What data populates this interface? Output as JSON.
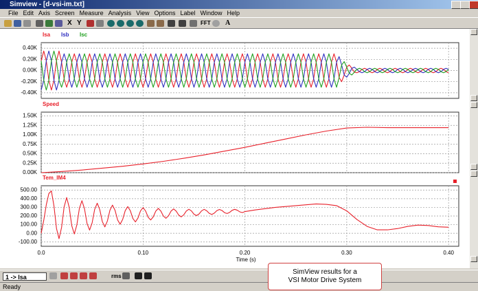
{
  "window": {
    "title": "Simview - [d-vsi-im.txt]"
  },
  "menu": [
    "File",
    "Edit",
    "Axis",
    "Screen",
    "Measure",
    "Analysis",
    "View",
    "Options",
    "Label",
    "Window",
    "Help"
  ],
  "toolbar": {
    "labels": [
      "X",
      "Y",
      "FFT",
      "A"
    ]
  },
  "chart_data": [
    {
      "type": "line",
      "xlim": [
        0,
        0.41
      ],
      "ylim": [
        -0.5,
        0.5
      ],
      "yticks": [
        {
          "value": 0.4,
          "label": "0.40K"
        },
        {
          "value": 0.2,
          "label": "0.20K"
        },
        {
          "value": 0,
          "label": "0.00K"
        },
        {
          "value": -0.2,
          "label": "-0.20K"
        },
        {
          "value": -0.4,
          "label": "-0.40K"
        }
      ],
      "xticks": [
        0,
        0.1,
        0.2,
        0.3,
        0.4
      ],
      "grid": true,
      "x": [
        0,
        0.0025,
        0.005,
        0.0075,
        0.01,
        0.0125,
        0.015,
        0.0175,
        0.02,
        0.0225,
        0.025,
        0.0275,
        0.03,
        0.0325,
        0.035,
        0.0375,
        0.04,
        0.0425,
        0.045,
        0.0475,
        0.05,
        0.0525,
        0.055,
        0.0575,
        0.06,
        0.0625,
        0.065,
        0.0675,
        0.07,
        0.0725,
        0.075,
        0.0775,
        0.08,
        0.0825,
        0.085,
        0.0875,
        0.09,
        0.0925,
        0.095,
        0.0975,
        0.1,
        0.1025,
        0.105,
        0.1075,
        0.11,
        0.1125,
        0.115,
        0.1175,
        0.12,
        0.1225,
        0.125,
        0.1275,
        0.13,
        0.1325,
        0.135,
        0.1375,
        0.14,
        0.1425,
        0.145,
        0.1475,
        0.15,
        0.1525,
        0.155,
        0.1575,
        0.16,
        0.1625,
        0.165,
        0.1675,
        0.17,
        0.1725,
        0.175,
        0.1775,
        0.18,
        0.1825,
        0.185,
        0.1875,
        0.19,
        0.1925,
        0.195,
        0.1975,
        0.2,
        0.2025,
        0.205,
        0.2075,
        0.21,
        0.2125,
        0.215,
        0.2175,
        0.22,
        0.2225,
        0.225,
        0.2275,
        0.23,
        0.2325,
        0.235,
        0.2375,
        0.24,
        0.2425,
        0.245,
        0.2475,
        0.25,
        0.2525,
        0.255,
        0.2575,
        0.26,
        0.2625,
        0.265,
        0.2675,
        0.27,
        0.2725,
        0.275,
        0.2775,
        0.28,
        0.2825,
        0.285,
        0.2875,
        0.29,
        0.2925,
        0.295,
        0.2975,
        0.3,
        0.3025,
        0.305,
        0.3075,
        0.31,
        0.3125,
        0.315,
        0.3175,
        0.32,
        0.3225,
        0.325,
        0.3275,
        0.33,
        0.3325,
        0.335,
        0.3375,
        0.34,
        0.3425,
        0.345,
        0.3475,
        0.35,
        0.3525,
        0.355,
        0.3575,
        0.36,
        0.3625,
        0.365,
        0.3675,
        0.37,
        0.3725,
        0.375,
        0.3775,
        0.38,
        0.3825,
        0.385,
        0.3875,
        0.39,
        0.3925,
        0.395,
        0.3975,
        0.4
      ],
      "series": [
        {
          "name": "Isa",
          "color": "#e8202a",
          "values": [
            0.175,
            0.35,
            0.175,
            -0.175,
            -0.35,
            -0.175,
            0.175,
            0.35,
            0.15,
            -0.15,
            -0.3,
            -0.15,
            0.15,
            0.3,
            0.15,
            -0.15,
            -0.3,
            -0.15,
            0.15,
            0.3,
            0.15,
            -0.15,
            -0.3,
            -0.15,
            0.15,
            0.3,
            0.15,
            -0.15,
            -0.3,
            -0.15,
            0.15,
            0.3,
            0.15,
            -0.15,
            -0.3,
            -0.15,
            0.15,
            0.3,
            0.15,
            -0.15,
            -0.3,
            -0.15,
            0.15,
            0.3,
            0.15,
            -0.15,
            -0.3,
            -0.15,
            0.15,
            0.3,
            0.15,
            -0.15,
            -0.3,
            -0.15,
            0.15,
            0.3,
            0.15,
            -0.15,
            -0.3,
            -0.15,
            0.15,
            0.3,
            0.15,
            -0.15,
            -0.3,
            -0.15,
            0.15,
            0.3,
            0.15,
            -0.15,
            -0.3,
            -0.15,
            0.15,
            0.3,
            0.15,
            -0.15,
            -0.3,
            -0.15,
            0.15,
            0.3,
            0.15,
            -0.15,
            -0.3,
            -0.15,
            0.15,
            0.3,
            0.15,
            -0.15,
            -0.3,
            -0.15,
            0.15,
            0.3,
            0.15,
            -0.15,
            -0.3,
            -0.15,
            0.15,
            0.3,
            0.15,
            -0.15,
            -0.3,
            -0.15,
            0.15,
            0.3,
            0.15,
            -0.15,
            -0.3,
            -0.15,
            0.15,
            0.3,
            0.15,
            -0.15,
            -0.3,
            -0.15,
            0.15,
            0.3,
            0.15,
            -0.125,
            -0.2,
            -0.08,
            0.06,
            0.1,
            0.04,
            -0.03,
            -0.04,
            -0.02,
            0.02,
            0.04,
            0.02,
            -0.02,
            -0.04,
            -0.02,
            0.02,
            0.04,
            0.02,
            -0.02,
            -0.04,
            -0.02,
            0.02,
            0.04,
            0.02,
            -0.02,
            -0.04,
            -0.02,
            0.02,
            0.04,
            0.02,
            -0.02,
            -0.04,
            -0.02,
            0.02,
            0.04,
            0.02,
            -0.02,
            -0.04,
            -0.02,
            0.02,
            0.04,
            0.02,
            -0.02,
            -0.04
          ]
        },
        {
          "name": "Isb",
          "color": "#3030c0",
          "values": [
            -0.35,
            -0.175,
            0.175,
            0.35,
            0.175,
            -0.175,
            -0.35,
            -0.175,
            0.15,
            0.3,
            0.15,
            -0.15,
            -0.3,
            -0.15,
            0.15,
            0.3,
            0.15,
            -0.15,
            -0.3,
            -0.15,
            0.15,
            0.3,
            0.15,
            -0.15,
            -0.3,
            -0.15,
            0.15,
            0.3,
            0.15,
            -0.15,
            -0.3,
            -0.15,
            0.15,
            0.3,
            0.15,
            -0.15,
            -0.3,
            -0.15,
            0.15,
            0.3,
            0.15,
            -0.15,
            -0.3,
            -0.15,
            0.15,
            0.3,
            0.15,
            -0.15,
            -0.3,
            -0.15,
            0.15,
            0.3,
            0.15,
            -0.15,
            -0.3,
            -0.15,
            0.15,
            0.3,
            0.15,
            -0.15,
            -0.3,
            -0.15,
            0.15,
            0.3,
            0.15,
            -0.15,
            -0.3,
            -0.15,
            0.15,
            0.3,
            0.15,
            -0.15,
            -0.3,
            -0.15,
            0.15,
            0.3,
            0.15,
            -0.15,
            -0.3,
            -0.15,
            0.15,
            0.3,
            0.15,
            -0.15,
            -0.3,
            -0.15,
            0.15,
            0.3,
            0.15,
            -0.15,
            -0.3,
            -0.15,
            0.15,
            0.3,
            0.15,
            -0.15,
            -0.3,
            -0.15,
            0.15,
            0.3,
            0.15,
            -0.15,
            -0.3,
            -0.15,
            0.15,
            0.3,
            0.15,
            -0.15,
            -0.3,
            -0.15,
            0.15,
            0.3,
            0.15,
            -0.15,
            -0.3,
            -0.15,
            0.15,
            0.25,
            0.1,
            -0.08,
            -0.12,
            -0.05,
            0.04,
            0.06,
            0.02,
            -0.02,
            -0.04,
            -0.02,
            0.02,
            0.04,
            0.02,
            -0.02,
            -0.04,
            -0.02,
            0.02,
            0.04,
            0.02,
            -0.02,
            -0.04,
            -0.02,
            0.02,
            0.04,
            0.02,
            -0.02,
            -0.04,
            -0.02,
            0.02,
            0.04,
            0.02,
            -0.02,
            -0.04,
            -0.02,
            0.02,
            0.04,
            0.02,
            -0.02,
            -0.04,
            -0.02,
            0.02,
            0.04,
            0.02
          ]
        },
        {
          "name": "Isc",
          "color": "#20a020",
          "values": [
            0.175,
            -0.175,
            -0.35,
            -0.175,
            0.175,
            0.35,
            0.175,
            -0.175,
            -0.3,
            -0.15,
            0.15,
            0.3,
            0.15,
            -0.15,
            -0.3,
            -0.15,
            0.15,
            0.3,
            0.15,
            -0.15,
            -0.3,
            -0.15,
            0.15,
            0.3,
            0.15,
            -0.15,
            -0.3,
            -0.15,
            0.15,
            0.3,
            0.15,
            -0.15,
            -0.3,
            -0.15,
            0.15,
            0.3,
            0.15,
            -0.15,
            -0.3,
            -0.15,
            0.15,
            0.3,
            0.15,
            -0.15,
            -0.3,
            -0.15,
            0.15,
            0.3,
            0.15,
            -0.15,
            -0.3,
            -0.15,
            0.15,
            0.3,
            0.15,
            -0.15,
            -0.3,
            -0.15,
            0.15,
            0.3,
            0.15,
            -0.15,
            -0.3,
            -0.15,
            0.15,
            0.3,
            0.15,
            -0.15,
            -0.3,
            -0.15,
            0.15,
            0.3,
            0.15,
            -0.15,
            -0.3,
            -0.15,
            0.15,
            0.3,
            0.15,
            -0.15,
            -0.3,
            -0.15,
            0.15,
            0.3,
            0.15,
            -0.15,
            -0.3,
            -0.15,
            0.15,
            0.3,
            0.15,
            -0.15,
            -0.3,
            -0.15,
            0.15,
            0.3,
            0.15,
            -0.15,
            -0.3,
            -0.15,
            0.15,
            0.3,
            0.15,
            -0.15,
            -0.3,
            -0.15,
            0.15,
            0.3,
            0.15,
            -0.15,
            -0.3,
            -0.15,
            0.15,
            0.3,
            0.15,
            -0.15,
            -0.3,
            -0.125,
            0.1,
            0.16,
            0.06,
            -0.05,
            -0.08,
            -0.03,
            0.02,
            0.04,
            0.02,
            -0.02,
            -0.04,
            -0.02,
            0.02,
            0.04,
            0.02,
            -0.02,
            -0.04,
            -0.02,
            0.02,
            0.04,
            0.02,
            -0.02,
            -0.04,
            -0.02,
            0.02,
            0.04,
            0.02,
            -0.02,
            -0.04,
            -0.02,
            0.02,
            0.04,
            0.02,
            -0.02,
            -0.04,
            -0.02,
            0.02,
            0.04,
            0.02,
            -0.02,
            -0.04,
            -0.02,
            0.02
          ]
        }
      ]
    },
    {
      "type": "line",
      "xlim": [
        0,
        0.41
      ],
      "ylim": [
        0,
        1.6
      ],
      "yticks": [
        {
          "value": 1.5,
          "label": "1.50K"
        },
        {
          "value": 1.25,
          "label": "1.25K"
        },
        {
          "value": 1,
          "label": "1.00K"
        },
        {
          "value": 0.75,
          "label": "0.75K"
        },
        {
          "value": 0.5,
          "label": "0.50K"
        },
        {
          "value": 0.25,
          "label": "0.25K"
        },
        {
          "value": 0,
          "label": "0.00K"
        }
      ],
      "xticks": [
        0,
        0.1,
        0.2,
        0.3,
        0.4
      ],
      "grid": true,
      "x": [
        0,
        0.02,
        0.04,
        0.06,
        0.08,
        0.1,
        0.12,
        0.14,
        0.16,
        0.18,
        0.2,
        0.22,
        0.24,
        0.26,
        0.28,
        0.3,
        0.32,
        0.34,
        0.36,
        0.38,
        0.4
      ],
      "series": [
        {
          "name": "Speed",
          "color": "#e8202a",
          "values": [
            0,
            0.03,
            0.07,
            0.12,
            0.17,
            0.23,
            0.3,
            0.38,
            0.47,
            0.57,
            0.67,
            0.78,
            0.89,
            1.0,
            1.1,
            1.18,
            1.2,
            1.19,
            1.19,
            1.19,
            1.19
          ]
        }
      ]
    },
    {
      "type": "line",
      "xlim": [
        0,
        0.41
      ],
      "ylim": [
        -150,
        550
      ],
      "yticks": [
        {
          "value": 500,
          "label": "500.00"
        },
        {
          "value": 400,
          "label": "400.00"
        },
        {
          "value": 300,
          "label": "300.00"
        },
        {
          "value": 200,
          "label": "200.00"
        },
        {
          "value": 100,
          "label": "100.00"
        },
        {
          "value": 0,
          "label": "0.00"
        },
        {
          "value": -100,
          "label": "-100.00"
        }
      ],
      "xticks": [
        {
          "value": 0,
          "label": "0.0"
        },
        {
          "value": 0.1,
          "label": "0.10"
        },
        {
          "value": 0.2,
          "label": "0.20"
        },
        {
          "value": 0.3,
          "label": "0.30"
        },
        {
          "value": 0.4,
          "label": "0.40"
        }
      ],
      "grid": true,
      "x_label": "Time (s)",
      "x": [
        0,
        0.0025,
        0.005,
        0.0075,
        0.01,
        0.0125,
        0.015,
        0.0175,
        0.02,
        0.0225,
        0.025,
        0.0275,
        0.03,
        0.0325,
        0.035,
        0.0375,
        0.04,
        0.0425,
        0.045,
        0.0475,
        0.05,
        0.0525,
        0.055,
        0.0575,
        0.06,
        0.0625,
        0.065,
        0.0675,
        0.07,
        0.0725,
        0.075,
        0.0775,
        0.08,
        0.0825,
        0.085,
        0.0875,
        0.09,
        0.0925,
        0.095,
        0.0975,
        0.1,
        0.1025,
        0.105,
        0.1075,
        0.11,
        0.1125,
        0.115,
        0.1175,
        0.12,
        0.1225,
        0.125,
        0.1275,
        0.13,
        0.1325,
        0.135,
        0.1375,
        0.14,
        0.1425,
        0.145,
        0.1475,
        0.15,
        0.1525,
        0.155,
        0.1575,
        0.16,
        0.1625,
        0.165,
        0.1675,
        0.17,
        0.1725,
        0.175,
        0.1775,
        0.18,
        0.1825,
        0.185,
        0.1875,
        0.19,
        0.1925,
        0.195,
        0.1975,
        0.2,
        0.21,
        0.22,
        0.23,
        0.24,
        0.25,
        0.26,
        0.27,
        0.28,
        0.29,
        0.3,
        0.31,
        0.32,
        0.33,
        0.34,
        0.35,
        0.36,
        0.37,
        0.38,
        0.39,
        0.4
      ],
      "series": [
        {
          "name": "Tem_IM4",
          "color": "#e8202a",
          "values": [
            0,
            150,
            330,
            460,
            490,
            319,
            57,
            -62,
            68,
            305,
            414,
            299,
            88,
            -8,
            97,
            289,
            377,
            284,
            114,
            37,
            121,
            277,
            348,
            274,
            136,
            74,
            143,
            268,
            326,
            266,
            155,
            105,
            161,
            262,
            309,
            261,
            172,
            132,
            177,
            259,
            297,
            258,
            186,
            154,
            190,
            257,
            288,
            257,
            199,
            174,
            203,
            257,
            282,
            257,
            211,
            190,
            214,
            258,
            278,
            259,
            221,
            205,
            224,
            260,
            277,
            261,
            231,
            218,
            234,
            263,
            276,
            264,
            239,
            229,
            242,
            266,
            277,
            267,
            248,
            240,
            251,
            270,
            285,
            300,
            310,
            320,
            330,
            340,
            335,
            320,
            260,
            160,
            80,
            40,
            40,
            55,
            80,
            95,
            90,
            75,
            70
          ]
        }
      ]
    }
  ],
  "bottom_toolbar": {
    "selector": "1 -> Isa",
    "rms": "rms"
  },
  "callout": [
    "SimView results for a",
    "VSI Motor Drive System"
  ],
  "status": "Ready"
}
